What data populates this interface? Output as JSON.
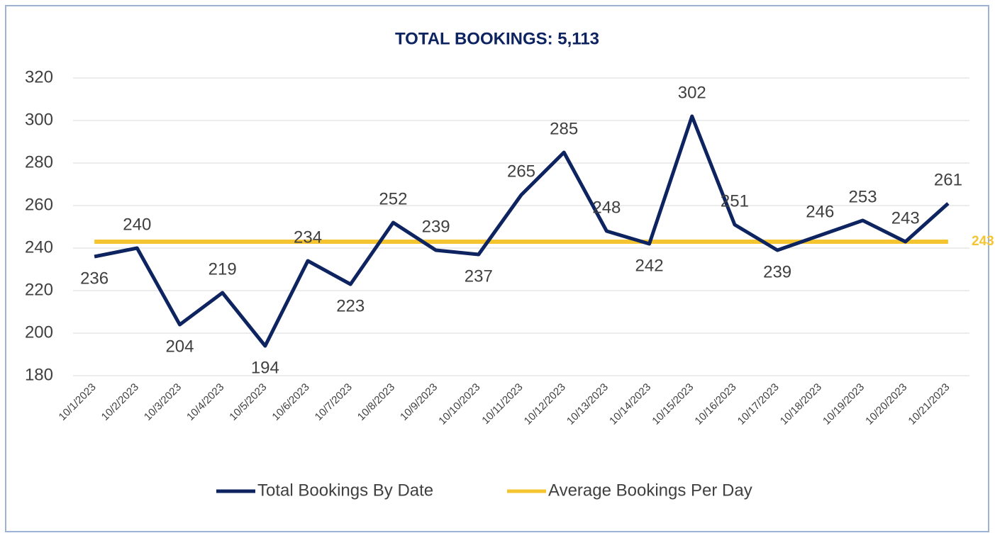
{
  "chart_data": {
    "type": "line",
    "title": "TOTAL BOOKINGS: 5,113",
    "categories": [
      "10/1/2023",
      "10/2/2023",
      "10/3/2023",
      "10/4/2023",
      "10/5/2023",
      "10/6/2023",
      "10/7/2023",
      "10/8/2023",
      "10/9/2023",
      "10/10/2023",
      "10/11/2023",
      "10/12/2023",
      "10/13/2023",
      "10/14/2023",
      "10/15/2023",
      "10/16/2023",
      "10/17/2023",
      "10/18/2023",
      "10/19/2023",
      "10/20/2023",
      "10/21/2023"
    ],
    "series": [
      {
        "name": "Total Bookings By Date",
        "color": "#0d2461",
        "values": [
          236,
          240,
          204,
          219,
          194,
          234,
          223,
          252,
          239,
          237,
          265,
          285,
          248,
          242,
          302,
          251,
          239,
          246,
          253,
          243,
          261
        ]
      },
      {
        "name": "Average Bookings Per Day",
        "color": "#f4c431",
        "values": [
          243,
          243,
          243,
          243,
          243,
          243,
          243,
          243,
          243,
          243,
          243,
          243,
          243,
          243,
          243,
          243,
          243,
          243,
          243,
          243,
          243
        ]
      }
    ],
    "ylim": [
      180,
      320
    ],
    "yticks": [
      180,
      200,
      220,
      240,
      260,
      280,
      300,
      320
    ],
    "grid": true,
    "legend": "bottom"
  }
}
